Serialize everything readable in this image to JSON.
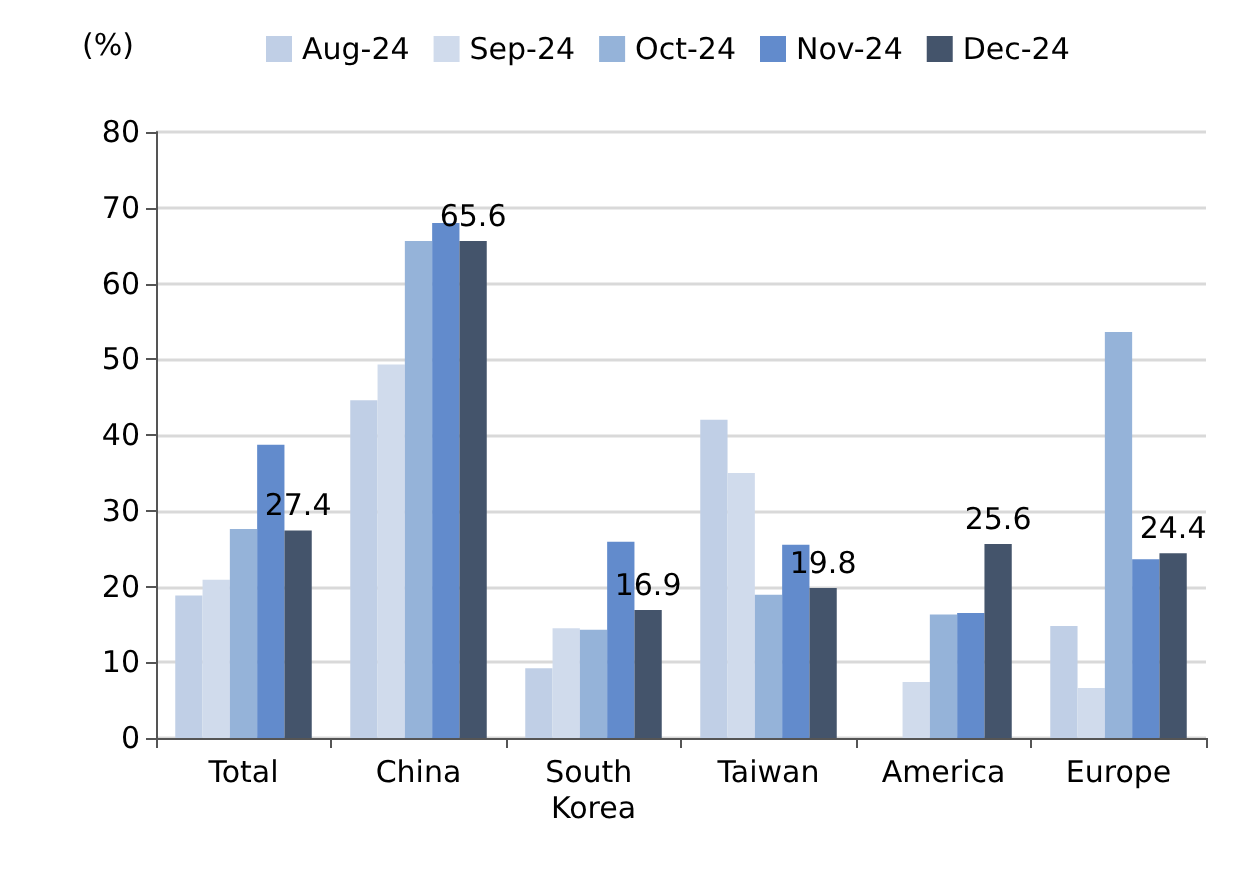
{
  "chart_data": {
    "type": "bar",
    "ylabel": "(%)",
    "categories": [
      "Total",
      "China",
      "South Korea",
      "Taiwan",
      "America",
      "Europe"
    ],
    "series": [
      {
        "name": "Aug-24",
        "color": "#c0cfe6",
        "values": [
          18.8,
          44.6,
          9.2,
          42.0,
          0,
          14.8
        ]
      },
      {
        "name": "Sep-24",
        "color": "#d0dbec",
        "values": [
          20.9,
          49.3,
          14.5,
          35.0,
          7.4,
          6.6
        ]
      },
      {
        "name": "Oct-24",
        "color": "#95b3d9",
        "values": [
          27.6,
          65.6,
          14.3,
          18.9,
          16.3,
          53.6
        ]
      },
      {
        "name": "Nov-24",
        "color": "#628bcc",
        "values": [
          38.7,
          68.0,
          25.9,
          25.5,
          16.5,
          23.6
        ]
      },
      {
        "name": "Dec-24",
        "color": "#44546b",
        "values": [
          27.4,
          65.6,
          16.9,
          19.8,
          25.6,
          24.4
        ],
        "value_labels": [
          "27.4",
          "65.6",
          "16.9",
          "19.8",
          "25.6",
          "24.4"
        ]
      }
    ],
    "ylim": [
      0,
      80
    ],
    "yticks": [
      0,
      10,
      20,
      30,
      40,
      50,
      60,
      70,
      80
    ],
    "grid": "y",
    "legend": "top"
  }
}
